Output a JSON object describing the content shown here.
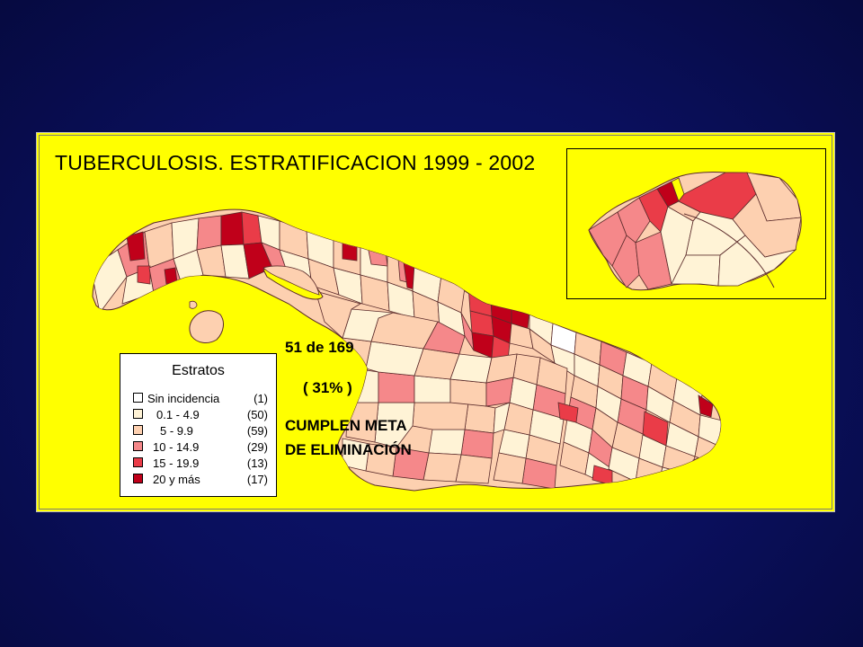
{
  "title": "TUBERCULOSIS. ESTRATIFICACION 1999 - 2002",
  "legend": {
    "title": "Estratos",
    "items": [
      {
        "label": "Sin incidencia",
        "count": "(1)",
        "color": "#ffffff"
      },
      {
        "label": "0.1 -   4.9",
        "count": "(50)",
        "color": "#fff3d6"
      },
      {
        "label": "5   -   9.9",
        "count": "(59)",
        "color": "#fdd0b0"
      },
      {
        "label": "10   - 14.9",
        "count": "(29)",
        "color": "#f5888a"
      },
      {
        "label": "15   - 19.9",
        "count": "(13)",
        "color": "#ea3c48"
      },
      {
        "label": "20   y más",
        "count": "(17)",
        "color": "#c0001a"
      }
    ]
  },
  "stats": {
    "line1": "51 de 169",
    "line2": "( 31% )",
    "line3": "CUMPLEN  META",
    "line4": "DE ELIMINACIÓN"
  },
  "colors": {
    "background": "#0a0f5c",
    "panel": "#ffff00",
    "border": "#5a2a2a"
  }
}
